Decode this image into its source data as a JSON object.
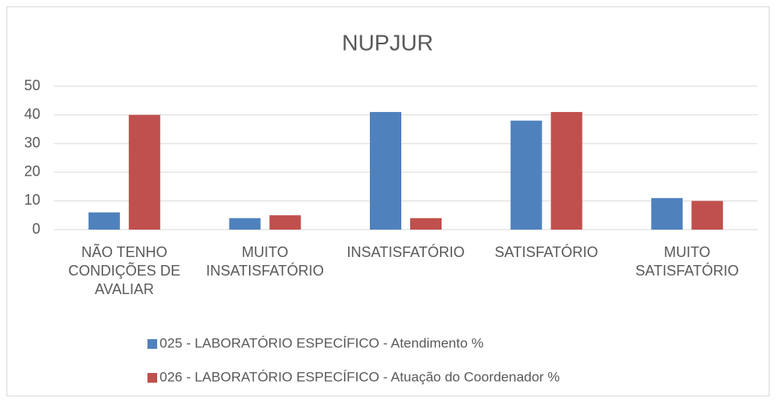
{
  "chart_data": {
    "type": "bar",
    "title": "NUPJUR",
    "categories": [
      "NÃO TENHO CONDIÇÕES DE AVALIAR",
      "MUITO INSATISFATÓRIO",
      "INSATISFATÓRIO",
      "SATISFATÓRIO",
      "MUITO SATISFATÓRIO"
    ],
    "series": [
      {
        "name": "025 - LABORATÓRIO ESPECÍFICO - Atendimento %",
        "color": "#4f81bd",
        "values": [
          6,
          4,
          41,
          38,
          11
        ]
      },
      {
        "name": "026 - LABORATÓRIO ESPECÍFICO - Atuação do Coordenador %",
        "color": "#c0504d",
        "values": [
          40,
          5,
          4,
          41,
          10
        ]
      }
    ],
    "ylim": [
      0,
      50
    ],
    "yticks": [
      0,
      10,
      20,
      30,
      40,
      50
    ],
    "grid": true,
    "legend": "bottom"
  }
}
